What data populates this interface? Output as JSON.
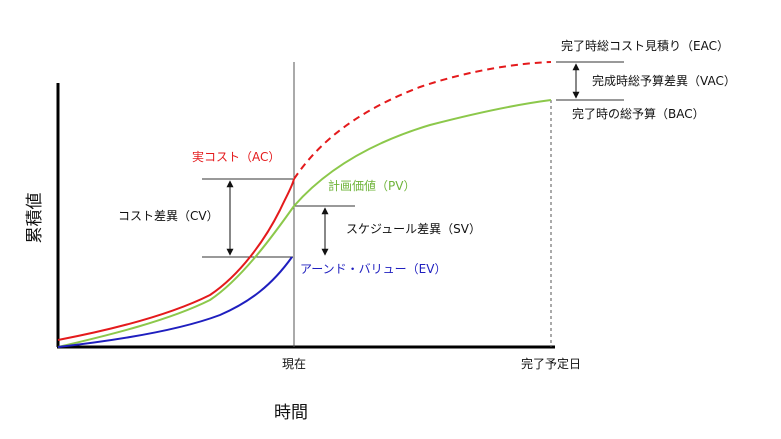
{
  "axes": {
    "y_title": "累積値",
    "x_title": "時間",
    "x_ticks": {
      "now": "現在",
      "planned_end": "完了予定日"
    }
  },
  "labels": {
    "eac": "完了時総コスト見積り（EAC）",
    "vac": "完成時総予算差異（VAC）",
    "bac": "完了時の総予算（BAC）",
    "ac": "実コスト（AC）",
    "pv": "計画価値（PV）",
    "cv": "コスト差異（CV）",
    "sv": "スケジュール差異（SV）",
    "ev": "アーンド・バリュー（EV）"
  },
  "colors": {
    "ac": "#e41a1c",
    "pv": "#8cc84b",
    "ev": "#1f1fbf",
    "axis": "#000000",
    "guide": "#444444"
  }
}
